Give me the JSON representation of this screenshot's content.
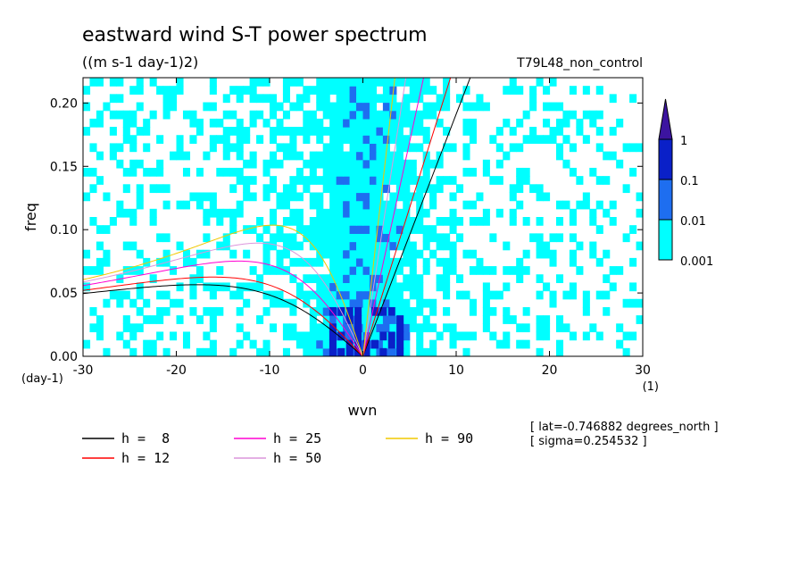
{
  "chart_data": {
    "type": "heatmap",
    "title": "eastward wind S-T power spectrum",
    "subtitle": "((m s-1 day-1)2)",
    "run_label": "T79L48_non_control",
    "xlabel": "wvn",
    "ylabel": "freq",
    "x_unit": "(1)",
    "y_unit": "(day-1)",
    "xlim": [
      -30,
      30
    ],
    "ylim": [
      0,
      0.22
    ],
    "x_ticks": [
      "-30",
      "-20",
      "-10",
      "0",
      "10",
      "20",
      "30"
    ],
    "y_ticks": [
      "0.00",
      "0.05",
      "0.10",
      "0.15",
      "0.20"
    ],
    "colorbar": {
      "levels": [
        "0.001",
        "0.01",
        "0.1",
        "1"
      ],
      "colors": [
        "#00ffff",
        "#1e6ef0",
        "#0a20c8",
        "#3c14a0"
      ]
    },
    "dispersion_curves": [
      {
        "label": "h =  8",
        "color": "#000000"
      },
      {
        "label": "h = 12",
        "color": "#ff0000"
      },
      {
        "label": "h = 25",
        "color": "#ff00d2"
      },
      {
        "label": "h = 50",
        "color": "#dc96dc"
      },
      {
        "label": "h = 90",
        "color": "#f0c800"
      }
    ],
    "annotations": [
      "[ lat=-0.746882 degrees_north ]",
      "[ sigma=0.254532 ]"
    ]
  }
}
